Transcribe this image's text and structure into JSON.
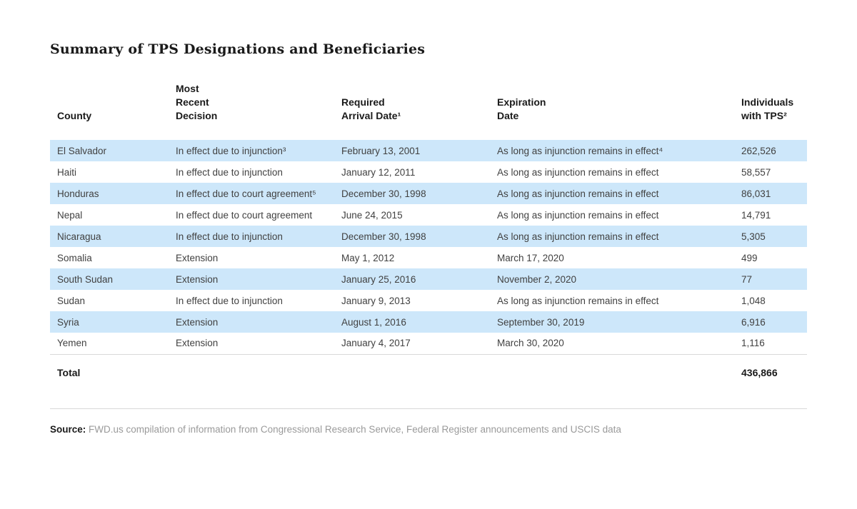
{
  "title": "Summary of TPS Designations and Beneficiaries",
  "colors": {
    "row_stripe": "#cde7fa",
    "rule": "#d9d9d9",
    "heading_text": "#1a1a1a",
    "body_text": "#414141",
    "source_text": "#9a9a9a"
  },
  "table": {
    "columns": [
      {
        "lines": [
          "County"
        ]
      },
      {
        "lines": [
          "Most",
          "Recent",
          "Decision"
        ]
      },
      {
        "lines": [
          "Required",
          "Arrival Date¹"
        ]
      },
      {
        "lines": [
          "Expiration",
          "Date"
        ]
      },
      {
        "lines": [
          "Individuals",
          "with TPS²"
        ]
      }
    ],
    "rows": [
      {
        "county": "El Salvador",
        "decision": "In effect due to injunction³",
        "arrival": "February 13, 2001",
        "expiration": "As long as injunction remains in effect⁴",
        "individuals": "262,526"
      },
      {
        "county": "Haiti",
        "decision": "In effect due to injunction",
        "arrival": "January 12, 2011",
        "expiration": "As long as injunction remains in effect",
        "individuals": "58,557"
      },
      {
        "county": "Honduras",
        "decision": "In effect due to court agreement⁵",
        "arrival": "December 30, 1998",
        "expiration": "As long as injunction remains in effect",
        "individuals": "86,031"
      },
      {
        "county": "Nepal",
        "decision": "In effect due to court agreement",
        "arrival": "June 24, 2015",
        "expiration": "As long as injunction remains in effect",
        "individuals": "14,791"
      },
      {
        "county": "Nicaragua",
        "decision": "In effect due to injunction",
        "arrival": "December 30, 1998",
        "expiration": "As long as injunction remains in effect",
        "individuals": "5,305"
      },
      {
        "county": "Somalia",
        "decision": "Extension",
        "arrival": "May 1, 2012",
        "expiration": "March 17, 2020",
        "individuals": "499"
      },
      {
        "county": "South Sudan",
        "decision": "Extension",
        "arrival": "January 25, 2016",
        "expiration": "November 2, 2020",
        "individuals": "77"
      },
      {
        "county": "Sudan",
        "decision": "In effect due to injunction",
        "arrival": "January 9, 2013",
        "expiration": "As long as injunction remains in effect",
        "individuals": "1,048"
      },
      {
        "county": "Syria",
        "decision": "Extension",
        "arrival": "August 1, 2016",
        "expiration": "September 30, 2019",
        "individuals": "6,916"
      },
      {
        "county": "Yemen",
        "decision": "Extension",
        "arrival": "January 4, 2017",
        "expiration": "March 30, 2020",
        "individuals": "1,116"
      }
    ],
    "total": {
      "label": "Total",
      "value": "436,866"
    }
  },
  "source": {
    "label": "Source:",
    "text": "FWD.us compilation of information from Congressional Research Service, Federal Register announcements and USCIS data"
  }
}
